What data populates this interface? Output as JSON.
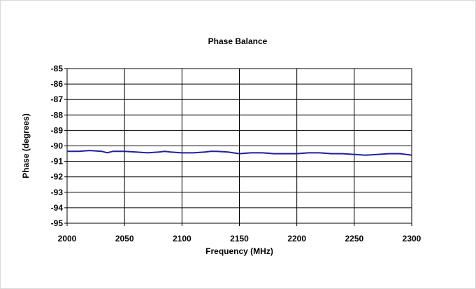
{
  "chart_data": {
    "type": "line",
    "title": "Phase Balance",
    "xlabel": "Frequency (MHz)",
    "ylabel": "Phase (degrees)",
    "xlim": [
      2000,
      2300
    ],
    "ylim": [
      -95,
      -85
    ],
    "xticks": [
      2000,
      2050,
      2100,
      2150,
      2200,
      2250,
      2300
    ],
    "yticks": [
      -85,
      -86,
      -87,
      -88,
      -89,
      -90,
      -91,
      -92,
      -93,
      -94,
      -95
    ],
    "grid": true,
    "legend": "none",
    "series": [
      {
        "color": "#1f1fa0",
        "x": [
          2000,
          2010,
          2020,
          2030,
          2035,
          2040,
          2050,
          2060,
          2070,
          2080,
          2085,
          2090,
          2100,
          2110,
          2120,
          2125,
          2130,
          2140,
          2150,
          2160,
          2170,
          2180,
          2190,
          2200,
          2210,
          2220,
          2230,
          2240,
          2250,
          2260,
          2270,
          2280,
          2290,
          2300
        ],
        "y": [
          -90.35,
          -90.35,
          -90.3,
          -90.35,
          -90.45,
          -90.35,
          -90.35,
          -90.4,
          -90.45,
          -90.4,
          -90.35,
          -90.4,
          -90.45,
          -90.45,
          -90.4,
          -90.35,
          -90.35,
          -90.4,
          -90.5,
          -90.45,
          -90.45,
          -90.5,
          -90.5,
          -90.5,
          -90.45,
          -90.45,
          -90.5,
          -90.5,
          -90.55,
          -90.6,
          -90.55,
          -90.5,
          -90.5,
          -90.6
        ]
      }
    ]
  }
}
